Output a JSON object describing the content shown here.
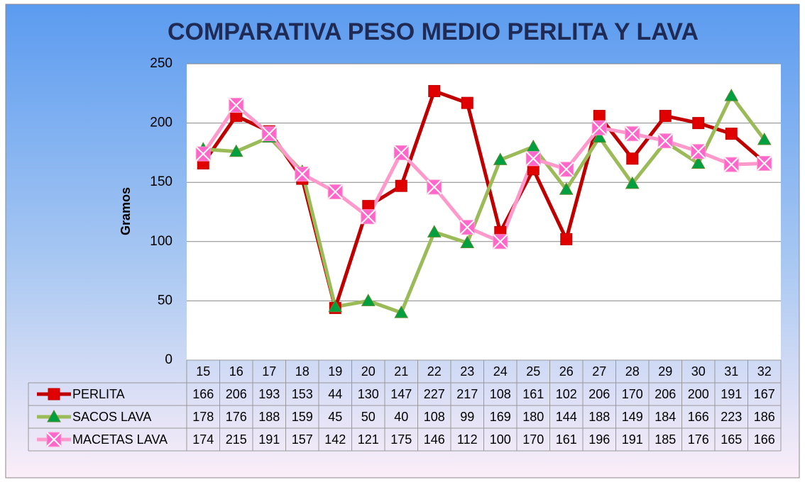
{
  "chart_data": {
    "type": "line",
    "title": "COMPARATIVA PESO MEDIO PERLITA Y LAVA",
    "y_label": "Gramos",
    "categories": [
      "15",
      "16",
      "17",
      "18",
      "19",
      "20",
      "21",
      "22",
      "23",
      "24",
      "25",
      "26",
      "27",
      "28",
      "29",
      "30",
      "31",
      "32"
    ],
    "series": [
      {
        "name": "PERLITA",
        "color": "#c00000",
        "marker": "square",
        "marker_color": "#e00000",
        "values": [
          166,
          206,
          193,
          153,
          44,
          130,
          147,
          227,
          217,
          108,
          161,
          102,
          206,
          170,
          206,
          200,
          191,
          167
        ]
      },
      {
        "name": "SACOS LAVA",
        "color": "#9bbb59",
        "marker": "triangle",
        "marker_color": "#00a040",
        "values": [
          178,
          176,
          188,
          159,
          45,
          50,
          40,
          108,
          99,
          169,
          180,
          144,
          188,
          149,
          184,
          166,
          223,
          186
        ]
      },
      {
        "name": "MACETAS LAVA",
        "color": "#ff99cc",
        "marker": "square-x",
        "marker_color": "#ff66cc",
        "values": [
          174,
          215,
          191,
          157,
          142,
          121,
          175,
          146,
          112,
          100,
          170,
          161,
          196,
          191,
          185,
          176,
          165,
          166
        ]
      }
    ],
    "ylim": [
      0,
      250
    ],
    "yticks": [
      0,
      50,
      100,
      150,
      200,
      250
    ],
    "grid": true
  }
}
